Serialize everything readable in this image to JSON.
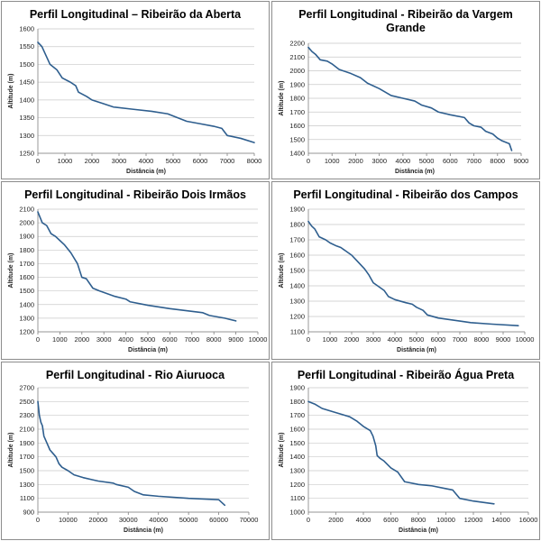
{
  "colors": {
    "line": "#2e5e8e",
    "grid": "#c9c9c9",
    "border": "#8c8c8c"
  },
  "chart_data": [
    {
      "type": "line",
      "title": "Perfil Longitudinal – Ribeirão da Aberta",
      "xlabel": "Distância (m)",
      "ylabel": "Altitude (m)",
      "xlim": [
        0,
        8000
      ],
      "xticks": [
        0,
        1000,
        2000,
        3000,
        4000,
        5000,
        6000,
        7000,
        8000
      ],
      "ylim": [
        1250,
        1600
      ],
      "yticks": [
        1250,
        1300,
        1350,
        1400,
        1450,
        1500,
        1550,
        1600
      ],
      "grid": true,
      "series": [
        {
          "x": [
            0,
            150,
            300,
            450,
            700,
            900,
            1200,
            1400,
            1500,
            1800,
            2000,
            2400,
            2800,
            3500,
            4200,
            4800,
            5000,
            5500,
            6000,
            6500,
            6800,
            7000,
            7500,
            8000
          ],
          "y": [
            1562,
            1550,
            1525,
            1500,
            1485,
            1462,
            1450,
            1440,
            1422,
            1410,
            1400,
            1390,
            1380,
            1374,
            1368,
            1361,
            1355,
            1340,
            1333,
            1326,
            1320,
            1300,
            1292,
            1280
          ]
        }
      ]
    },
    {
      "type": "line",
      "title": "Perfil Longitudinal - Ribeirão da Vargem Grande",
      "xlabel": "Distância (m)",
      "ylabel": "Altitude (m)",
      "xlim": [
        0,
        9000
      ],
      "xticks": [
        0,
        1000,
        2000,
        3000,
        4000,
        5000,
        6000,
        7000,
        8000,
        9000
      ],
      "ylim": [
        1400,
        2200
      ],
      "yticks": [
        1400,
        1500,
        1600,
        1700,
        1800,
        1900,
        2000,
        2100,
        2200
      ],
      "grid": true,
      "series": [
        {
          "x": [
            0,
            150,
            300,
            500,
            800,
            1000,
            1300,
            1800,
            2200,
            2500,
            3000,
            3500,
            4000,
            4500,
            4800,
            5200,
            5500,
            6000,
            6600,
            6800,
            7000,
            7300,
            7500,
            7800,
            8000,
            8200,
            8500,
            8600
          ],
          "y": [
            2170,
            2140,
            2120,
            2080,
            2070,
            2050,
            2010,
            1980,
            1950,
            1910,
            1870,
            1820,
            1800,
            1780,
            1750,
            1730,
            1700,
            1680,
            1660,
            1620,
            1600,
            1590,
            1560,
            1540,
            1510,
            1490,
            1470,
            1420
          ]
        }
      ]
    },
    {
      "type": "line",
      "title": "Perfil Longitudinal - Ribeirão Dois Irmãos",
      "xlabel": "Distância (m)",
      "ylabel": "Altitude (m)",
      "xlim": [
        0,
        10000
      ],
      "xticks": [
        0,
        1000,
        2000,
        3000,
        4000,
        5000,
        6000,
        7000,
        8000,
        9000,
        10000
      ],
      "ylim": [
        1200,
        2100
      ],
      "yticks": [
        1200,
        1300,
        1400,
        1500,
        1600,
        1700,
        1800,
        1900,
        2000,
        2100
      ],
      "grid": true,
      "series": [
        {
          "x": [
            0,
            200,
            400,
            600,
            800,
            1000,
            1200,
            1500,
            1800,
            2000,
            2200,
            2500,
            2800,
            3500,
            4000,
            4200,
            5000,
            6000,
            7000,
            7500,
            7800,
            8500,
            9000
          ],
          "y": [
            2080,
            2000,
            1980,
            1920,
            1900,
            1870,
            1840,
            1780,
            1700,
            1600,
            1590,
            1520,
            1500,
            1460,
            1440,
            1420,
            1395,
            1370,
            1350,
            1340,
            1320,
            1300,
            1280
          ]
        }
      ]
    },
    {
      "type": "line",
      "title": "Perfil Longitudinal - Ribeirão dos Campos",
      "xlabel": "Distância (m)",
      "ylabel": "Altitude (m)",
      "xlim": [
        0,
        10000
      ],
      "xticks": [
        0,
        1000,
        2000,
        3000,
        4000,
        5000,
        6000,
        7000,
        8000,
        9000,
        10000
      ],
      "ylim": [
        1100,
        1900
      ],
      "yticks": [
        1100,
        1200,
        1300,
        1400,
        1500,
        1600,
        1700,
        1800,
        1900
      ],
      "grid": true,
      "series": [
        {
          "x": [
            0,
            150,
            300,
            500,
            800,
            1000,
            1300,
            1500,
            1700,
            2000,
            2200,
            2400,
            2600,
            2800,
            3000,
            3200,
            3500,
            3700,
            4000,
            4500,
            4800,
            5000,
            5300,
            5500,
            6000,
            7000,
            7500,
            8500,
            9700
          ],
          "y": [
            1820,
            1790,
            1770,
            1720,
            1700,
            1680,
            1660,
            1650,
            1630,
            1600,
            1570,
            1540,
            1510,
            1470,
            1420,
            1400,
            1370,
            1330,
            1310,
            1290,
            1280,
            1260,
            1240,
            1210,
            1190,
            1170,
            1160,
            1150,
            1140
          ]
        }
      ]
    },
    {
      "type": "line",
      "title": "Perfil Longitudinal - Rio Aiuruoca",
      "xlabel": "Distância (m)",
      "ylabel": "Altitude (m)",
      "xlim": [
        0,
        70000
      ],
      "xticks": [
        0,
        10000,
        20000,
        30000,
        40000,
        50000,
        60000,
        70000
      ],
      "ylim": [
        900,
        2700
      ],
      "yticks": [
        900,
        1100,
        1300,
        1500,
        1700,
        1900,
        2100,
        2300,
        2500,
        2700
      ],
      "grid": true,
      "series": [
        {
          "x": [
            0,
            500,
            1000,
            1500,
            2000,
            3000,
            4000,
            5000,
            6000,
            7000,
            8000,
            10000,
            12000,
            15000,
            18000,
            20000,
            25000,
            26000,
            30000,
            32000,
            35000,
            40000,
            50000,
            60000,
            62000
          ],
          "y": [
            2500,
            2300,
            2200,
            2150,
            2000,
            1900,
            1800,
            1750,
            1700,
            1600,
            1550,
            1500,
            1440,
            1400,
            1370,
            1350,
            1320,
            1300,
            1260,
            1200,
            1150,
            1130,
            1100,
            1080,
            1000
          ]
        }
      ]
    },
    {
      "type": "line",
      "title": "Perfil Longitudinal - Ribeirão Água Preta",
      "xlabel": "Distância (m)",
      "ylabel": "Altitude (m)",
      "xlim": [
        0,
        16000
      ],
      "xticks": [
        0,
        2000,
        4000,
        6000,
        8000,
        10000,
        12000,
        14000,
        16000
      ],
      "ylim": [
        1000,
        1900
      ],
      "yticks": [
        1000,
        1100,
        1200,
        1300,
        1400,
        1500,
        1600,
        1700,
        1800,
        1900
      ],
      "grid": true,
      "series": [
        {
          "x": [
            0,
            500,
            1000,
            2000,
            3000,
            3500,
            4000,
            4500,
            4700,
            4900,
            5000,
            5200,
            5500,
            6000,
            6500,
            7000,
            8000,
            9000,
            10000,
            10500,
            11000,
            12000,
            13500
          ],
          "y": [
            1800,
            1780,
            1750,
            1720,
            1690,
            1660,
            1620,
            1590,
            1550,
            1480,
            1410,
            1390,
            1370,
            1320,
            1290,
            1220,
            1200,
            1190,
            1170,
            1160,
            1100,
            1080,
            1060
          ]
        }
      ]
    }
  ]
}
